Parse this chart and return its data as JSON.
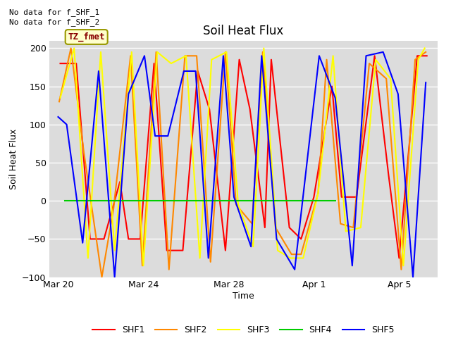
{
  "title": "Soil Heat Flux",
  "ylabel": "Soil Heat Flux",
  "xlabel": "Time",
  "ylim": [
    -100,
    210
  ],
  "yticks": [
    -100,
    -50,
    0,
    50,
    100,
    150,
    200
  ],
  "bg_color": "#dcdcdc",
  "text_no_data": [
    "No data for f_SHF_1",
    "No data for f_SHF_2"
  ],
  "legend_box_label": "TZ_fmet",
  "legend_box_color": "#ffffcc",
  "legend_box_text_color": "#880000",
  "series": {
    "SHF1": {
      "color": "#ff0000",
      "x": [
        20.1,
        20.85,
        21.5,
        22.15,
        22.9,
        23.3,
        23.85,
        24.5,
        25.1,
        25.85,
        26.55,
        27.1,
        27.85,
        28.5,
        29.0,
        29.7,
        30.0,
        30.85,
        31.4,
        32.0,
        32.85,
        33.3,
        34.0,
        34.85,
        35.5,
        36.0,
        36.85,
        37.3
      ],
      "y": [
        180,
        180,
        -50,
        -50,
        25,
        -50,
        -50,
        180,
        -65,
        -65,
        170,
        120,
        -65,
        185,
        120,
        -35,
        185,
        -35,
        -50,
        5,
        150,
        5,
        5,
        190,
        35,
        -75,
        190,
        190
      ]
    },
    "SHF2": {
      "color": "#ff8800",
      "x": [
        20.05,
        20.6,
        21.2,
        22.05,
        22.6,
        23.4,
        23.95,
        24.6,
        25.2,
        25.95,
        26.5,
        27.15,
        27.85,
        28.35,
        29.1,
        29.6,
        30.2,
        30.95,
        31.4,
        32.2,
        32.6,
        33.25,
        33.85,
        34.6,
        35.4,
        36.1,
        36.75,
        37.25
      ],
      "y": [
        130,
        200,
        65,
        -100,
        -10,
        190,
        -85,
        195,
        -90,
        190,
        190,
        -80,
        195,
        -5,
        -30,
        195,
        -35,
        -70,
        -70,
        10,
        185,
        -30,
        -35,
        180,
        160,
        -90,
        185,
        195
      ]
    },
    "SHF3": {
      "color": "#ffff00",
      "x": [
        20.1,
        20.75,
        21.4,
        22.0,
        22.65,
        23.45,
        24.0,
        24.65,
        25.3,
        26.0,
        26.65,
        27.2,
        27.9,
        28.45,
        29.15,
        29.65,
        30.3,
        30.9,
        31.5,
        32.2,
        32.9,
        33.5,
        34.2,
        34.9,
        35.6,
        36.2,
        36.9,
        37.2
      ],
      "y": [
        135,
        200,
        -75,
        195,
        -65,
        195,
        -85,
        195,
        180,
        190,
        -75,
        185,
        195,
        -5,
        -60,
        200,
        -65,
        -75,
        -75,
        10,
        190,
        -40,
        -35,
        185,
        160,
        -85,
        185,
        200
      ]
    },
    "SHF4": {
      "color": "#00cc00",
      "x": [
        20.3,
        22.5,
        27.0,
        33.0
      ],
      "y": [
        0,
        0,
        0,
        0
      ]
    },
    "SHF5": {
      "color": "#0000ff",
      "x": [
        20.0,
        20.4,
        21.15,
        21.9,
        22.65,
        23.3,
        24.05,
        24.55,
        25.15,
        25.9,
        26.45,
        27.05,
        27.75,
        28.25,
        29.05,
        29.55,
        30.25,
        31.1,
        32.25,
        33.0,
        33.8,
        34.45,
        35.25,
        35.95,
        36.65,
        37.25
      ],
      "y": [
        110,
        100,
        -55,
        170,
        -100,
        140,
        190,
        85,
        85,
        170,
        170,
        -75,
        190,
        5,
        -60,
        190,
        -50,
        -90,
        190,
        135,
        -85,
        190,
        195,
        140,
        -100,
        155
      ]
    }
  },
  "xtick_dates": [
    "Mar 20",
    "Mar 24",
    "Mar 28",
    "Apr 1",
    "Apr 5"
  ],
  "xtick_positions": [
    20.0,
    24.0,
    28.0,
    32.0,
    36.0
  ],
  "xlim": [
    19.6,
    37.8
  ]
}
